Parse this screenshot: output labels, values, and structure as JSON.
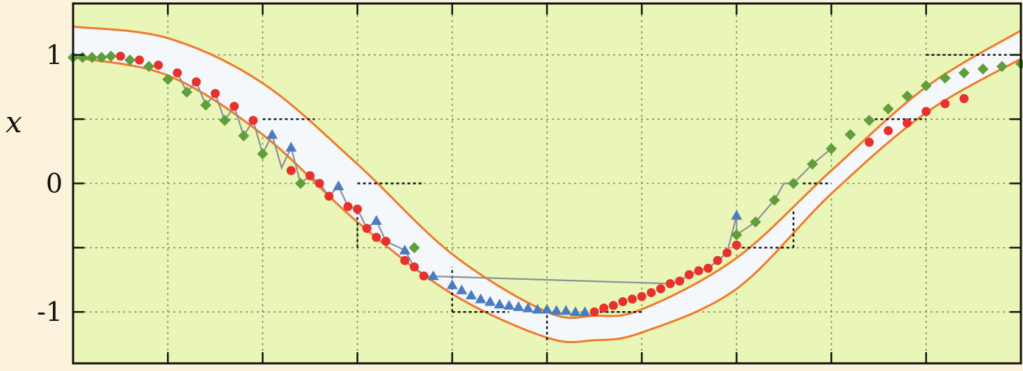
{
  "chart_data": {
    "type": "scatter",
    "title": "",
    "xlabel": "",
    "ylabel": "x",
    "ylim": [
      -1.4,
      1.4
    ],
    "xlim": [
      0,
      10
    ],
    "grid": true,
    "y_ticks": [
      1,
      0.5,
      0,
      -0.5,
      -1
    ],
    "y_tick_labels": [
      "1",
      "",
      "0",
      "",
      "-1"
    ],
    "colors": {
      "plot_bg": "#eaf5b8",
      "band_fill": "#f4f8fa",
      "envelope": "#ef7a2a",
      "red": "#e8302c",
      "green": "#5f9e3a",
      "blue": "#4a7cc0",
      "zigzag": "#8a8f99",
      "guide": "#111111"
    },
    "envelope": {
      "upper": [
        [
          0,
          1.22
        ],
        [
          1,
          1.13
        ],
        [
          2,
          0.78
        ],
        [
          3,
          0.15
        ],
        [
          4,
          -0.55
        ],
        [
          5,
          -1.0
        ],
        [
          5.5,
          -1.03
        ],
        [
          6,
          -0.98
        ],
        [
          7,
          -0.58
        ],
        [
          8,
          0.1
        ],
        [
          9,
          0.75
        ],
        [
          10,
          1.19
        ]
      ],
      "lower": [
        [
          0,
          0.98
        ],
        [
          1,
          0.84
        ],
        [
          2,
          0.38
        ],
        [
          3,
          -0.3
        ],
        [
          4,
          -0.86
        ],
        [
          5,
          -1.2
        ],
        [
          5.5,
          -1.22
        ],
        [
          6,
          -1.16
        ],
        [
          7,
          -0.82
        ],
        [
          8,
          -0.08
        ],
        [
          9,
          0.55
        ],
        [
          10,
          0.97
        ]
      ]
    },
    "guides": [
      {
        "x": [
          1.0,
          1.0
        ],
        "y": [
          1.0,
          1.0
        ]
      },
      {
        "x": [
          2.0,
          2.55
        ],
        "y": [
          0.5,
          0.5
        ]
      },
      {
        "x": [
          3.0,
          3.7
        ],
        "y": [
          0.0,
          0.0
        ]
      },
      {
        "x": [
          3.0,
          3.0
        ],
        "y": [
          -0.5,
          -0.2
        ]
      },
      {
        "x": [
          4.0,
          4.6
        ],
        "y": [
          -1.0,
          -1.0
        ]
      },
      {
        "x": [
          4.0,
          4.0
        ],
        "y": [
          -1.0,
          -0.65
        ]
      },
      {
        "x": [
          5.0,
          5.0
        ],
        "y": [
          -1.22,
          -1.0
        ]
      },
      {
        "x": [
          6.0,
          6.0
        ],
        "y": [
          -1.0,
          -1.0
        ]
      },
      {
        "x": [
          5.5,
          6.0
        ],
        "y": [
          -1.0,
          -1.0
        ]
      },
      {
        "x": [
          7.0,
          7.6
        ],
        "y": [
          -0.5,
          -0.5
        ]
      },
      {
        "x": [
          7.6,
          7.6
        ],
        "y": [
          -0.5,
          -0.2
        ]
      },
      {
        "x": [
          7.7,
          8.0
        ],
        "y": [
          0.0,
          0.0
        ]
      },
      {
        "x": [
          8.4,
          9.0
        ],
        "y": [
          0.5,
          0.5
        ]
      },
      {
        "x": [
          9.0,
          10.0
        ],
        "y": [
          1.0,
          1.0
        ]
      }
    ],
    "series": [
      {
        "marker": "diamond",
        "color": "green",
        "points": [
          [
            0,
            0.98
          ],
          [
            0.1,
            0.98
          ],
          [
            0.2,
            0.98
          ],
          [
            0.3,
            0.98
          ],
          [
            0.4,
            0.99
          ],
          [
            0.6,
            0.96
          ],
          [
            0.8,
            0.91
          ],
          [
            1.0,
            0.81
          ],
          [
            1.2,
            0.71
          ],
          [
            1.4,
            0.61
          ],
          [
            1.6,
            0.49
          ],
          [
            1.8,
            0.37
          ],
          [
            2.0,
            0.23
          ],
          [
            2.4,
            0.0
          ],
          [
            3.6,
            -0.5
          ],
          [
            7.0,
            -0.4
          ],
          [
            7.2,
            -0.3
          ],
          [
            7.4,
            -0.13
          ],
          [
            7.6,
            0.0
          ],
          [
            7.8,
            0.15
          ],
          [
            8.0,
            0.27
          ],
          [
            8.2,
            0.38
          ],
          [
            8.4,
            0.49
          ],
          [
            8.6,
            0.58
          ],
          [
            8.8,
            0.68
          ],
          [
            9.0,
            0.76
          ],
          [
            9.2,
            0.82
          ],
          [
            9.4,
            0.86
          ],
          [
            9.6,
            0.89
          ],
          [
            9.8,
            0.91
          ],
          [
            10.0,
            0.93
          ]
        ]
      },
      {
        "marker": "circle",
        "color": "red",
        "points": [
          [
            0.5,
            0.99
          ],
          [
            0.7,
            0.96
          ],
          [
            0.9,
            0.92
          ],
          [
            1.1,
            0.86
          ],
          [
            1.3,
            0.79
          ],
          [
            1.5,
            0.7
          ],
          [
            1.7,
            0.6
          ],
          [
            1.9,
            0.49
          ],
          [
            2.3,
            0.1
          ],
          [
            2.5,
            0.06
          ],
          [
            2.6,
            0.0
          ],
          [
            2.7,
            -0.1
          ],
          [
            2.9,
            -0.18
          ],
          [
            3.0,
            -0.2
          ],
          [
            3.1,
            -0.35
          ],
          [
            3.2,
            -0.42
          ],
          [
            3.3,
            -0.45
          ],
          [
            3.5,
            -0.6
          ],
          [
            3.6,
            -0.65
          ],
          [
            3.7,
            -0.72
          ],
          [
            5.5,
            -1.0
          ],
          [
            5.6,
            -0.97
          ],
          [
            5.7,
            -0.95
          ],
          [
            5.8,
            -0.92
          ],
          [
            5.9,
            -0.9
          ],
          [
            6.0,
            -0.88
          ],
          [
            6.1,
            -0.85
          ],
          [
            6.2,
            -0.82
          ],
          [
            6.3,
            -0.78
          ],
          [
            6.4,
            -0.76
          ],
          [
            6.5,
            -0.71
          ],
          [
            6.6,
            -0.68
          ],
          [
            6.7,
            -0.66
          ],
          [
            6.8,
            -0.6
          ],
          [
            6.9,
            -0.54
          ],
          [
            7.0,
            -0.48
          ],
          [
            8.4,
            0.32
          ],
          [
            8.6,
            0.41
          ],
          [
            8.8,
            0.47
          ],
          [
            9.0,
            0.56
          ],
          [
            9.2,
            0.62
          ],
          [
            9.4,
            0.66
          ]
        ]
      },
      {
        "marker": "triangle",
        "color": "blue",
        "points": [
          [
            2.1,
            0.38
          ],
          [
            2.3,
            0.28
          ],
          [
            2.8,
            -0.02
          ],
          [
            3.2,
            -0.29
          ],
          [
            3.5,
            -0.52
          ],
          [
            3.8,
            -0.72
          ],
          [
            4.0,
            -0.79
          ],
          [
            4.1,
            -0.83
          ],
          [
            4.2,
            -0.87
          ],
          [
            4.3,
            -0.9
          ],
          [
            4.4,
            -0.92
          ],
          [
            4.5,
            -0.94
          ],
          [
            4.6,
            -0.95
          ],
          [
            4.7,
            -0.96
          ],
          [
            4.8,
            -0.97
          ],
          [
            4.9,
            -0.98
          ],
          [
            5.0,
            -0.98
          ],
          [
            5.1,
            -0.99
          ],
          [
            5.2,
            -0.99
          ],
          [
            5.3,
            -1.0
          ],
          [
            5.4,
            -1.0
          ],
          [
            7.0,
            -0.25
          ]
        ]
      }
    ],
    "zigzag": [
      [
        1.1,
        0.86
      ],
      [
        1.2,
        0.71
      ],
      [
        1.3,
        0.79
      ],
      [
        1.4,
        0.61
      ],
      [
        1.5,
        0.7
      ],
      [
        1.6,
        0.49
      ],
      [
        1.7,
        0.6
      ],
      [
        1.8,
        0.37
      ],
      [
        1.9,
        0.49
      ],
      [
        2.0,
        0.23
      ],
      [
        2.1,
        0.38
      ],
      [
        2.2,
        0.12
      ],
      [
        2.3,
        0.28
      ],
      [
        2.4,
        0.0
      ],
      [
        2.5,
        0.06
      ],
      [
        2.6,
        0.0
      ],
      [
        2.7,
        -0.1
      ],
      [
        2.8,
        -0.02
      ],
      [
        2.9,
        -0.18
      ],
      [
        3.0,
        -0.2
      ],
      [
        3.1,
        -0.35
      ],
      [
        3.2,
        -0.29
      ],
      [
        3.3,
        -0.45
      ],
      [
        3.5,
        -0.52
      ],
      [
        3.6,
        -0.65
      ],
      [
        3.7,
        -0.72
      ],
      [
        6.3,
        -0.78
      ],
      [
        6.4,
        -0.76
      ],
      [
        6.5,
        -0.71
      ],
      [
        6.6,
        -0.68
      ],
      [
        6.7,
        -0.66
      ],
      [
        6.8,
        -0.6
      ],
      [
        6.9,
        -0.54
      ],
      [
        7.0,
        -0.25
      ],
      [
        7.0,
        -0.4
      ],
      [
        7.2,
        -0.3
      ],
      [
        7.4,
        -0.13
      ],
      [
        7.5,
        0.0
      ],
      [
        7.6,
        0.0
      ],
      [
        7.8,
        0.15
      ],
      [
        8.0,
        0.27
      ]
    ]
  }
}
